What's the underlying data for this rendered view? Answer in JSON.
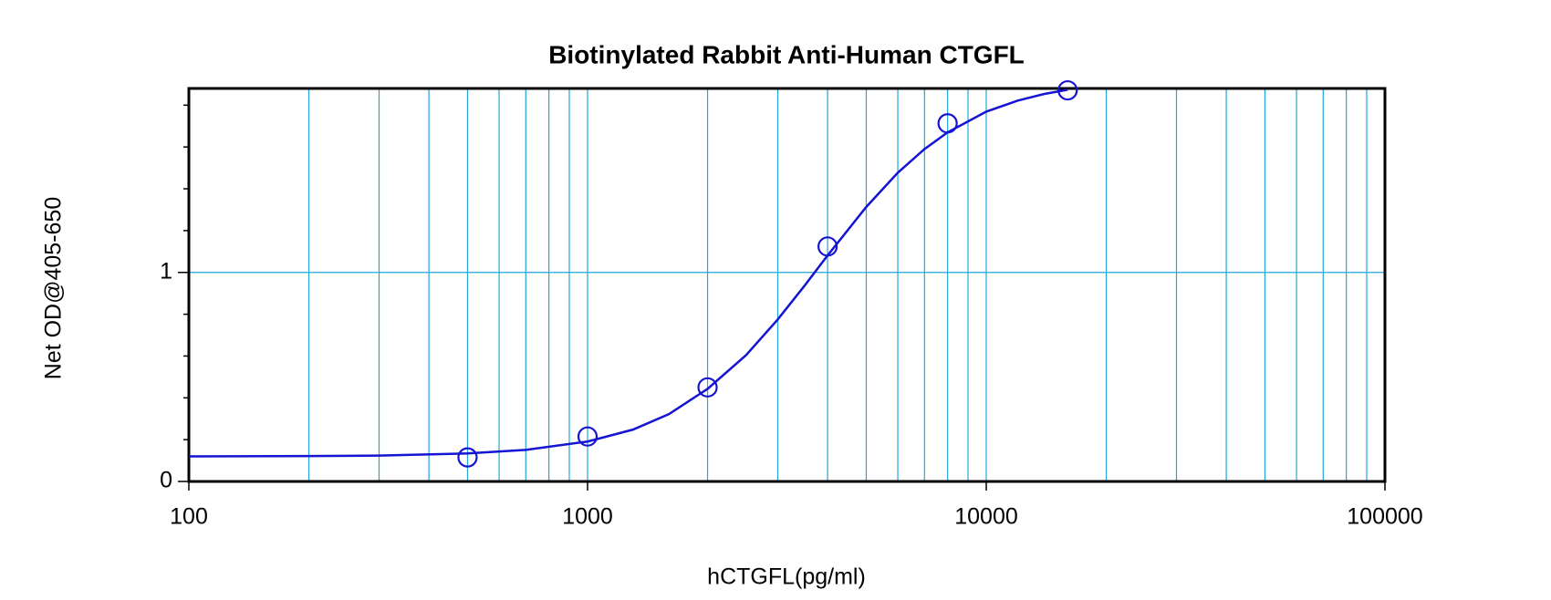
{
  "chart_data": {
    "type": "scatter",
    "title": "Biotinylated Rabbit Anti-Human CTGFL",
    "x_label": "hCTGFL(pg/ml)",
    "y_label": "Net OD@405-650",
    "x_log": true,
    "grid": true,
    "xlim": [
      100,
      100000
    ],
    "ylim": [
      0,
      1.88
    ],
    "xticks": [
      100,
      1000,
      10000,
      100000
    ],
    "xminor_ticks": [
      200,
      300,
      400,
      500,
      600,
      700,
      800,
      900,
      2000,
      3000,
      4000,
      5000,
      6000,
      7000,
      8000,
      9000,
      20000,
      30000,
      40000,
      50000,
      60000,
      70000,
      80000,
      90000
    ],
    "yticks": [
      0,
      1
    ],
    "yminor_ticks": [
      0.2,
      0.4,
      0.6,
      0.8,
      1.2,
      1.4,
      1.6,
      1.8
    ],
    "color": "#1414d2",
    "grid_color": "#22a6dc",
    "x": [
      500,
      1000,
      2000,
      4000,
      8000,
      16000
    ],
    "values": [
      0.115,
      0.215,
      0.45,
      1.124,
      1.713,
      1.871
    ],
    "fit": {
      "x": [
        100,
        200,
        300,
        500,
        700,
        1000,
        1300,
        1600,
        2000,
        2500,
        3000,
        3500,
        4000,
        5000,
        6000,
        7000,
        8000,
        10000,
        12000,
        14000,
        16000
      ],
      "values": [
        0.12,
        0.1215,
        0.124,
        0.134,
        0.151,
        0.191,
        0.248,
        0.322,
        0.443,
        0.605,
        0.775,
        0.936,
        1.081,
        1.313,
        1.477,
        1.59,
        1.67,
        1.769,
        1.822,
        1.854,
        1.874
      ]
    }
  }
}
